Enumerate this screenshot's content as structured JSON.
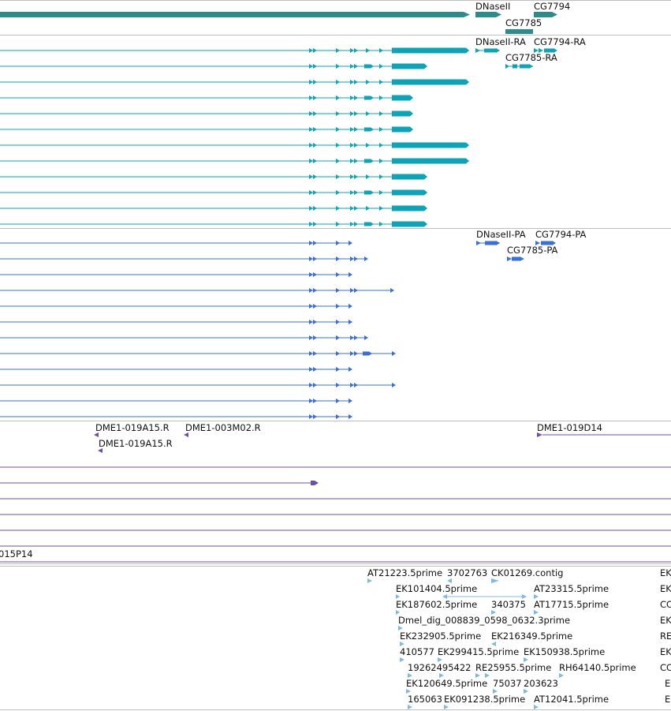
{
  "colors": {
    "gene": "#2e8b8b",
    "transcript": "#0fa3b8",
    "protein": "#3a6fd6",
    "clone": "#6f4ea6",
    "est": "#7fb9e0",
    "separator": "#bfbfbf"
  },
  "tracks": [
    {
      "id": "genes",
      "labels": [
        {
          "text": "DNaseII",
          "glyph": "arrow-right"
        },
        {
          "text": "CG7794",
          "glyph": "arrow-right"
        },
        {
          "text": "CG7785",
          "glyph": "bar"
        }
      ]
    },
    {
      "id": "transcripts",
      "row_count": 12,
      "labels": [
        {
          "text": "DNaseII-RA",
          "glyph": "arrow-right"
        },
        {
          "text": "CG7794-RA",
          "glyph": "arrow-right"
        },
        {
          "text": "CG7785-RA",
          "glyph": "arrow-right"
        }
      ]
    },
    {
      "id": "proteins",
      "row_count": 12,
      "labels": [
        {
          "text": "DNaseII-PA",
          "glyph": "arrow-right"
        },
        {
          "text": "CG7794-PA",
          "glyph": "arrow-right"
        },
        {
          "text": "CG7785-PA",
          "glyph": "arrow-right"
        }
      ]
    },
    {
      "id": "clones",
      "labels": [
        {
          "text": "DME1-019A15.R",
          "glyph": "arrow-left"
        },
        {
          "text": "DME1-003M02.R",
          "glyph": "arrow-left"
        },
        {
          "text": "DME1-019A15.R",
          "glyph": "arrow-left"
        },
        {
          "text": "DME1-019D14",
          "glyph": "line-right"
        },
        {
          "text": "015P14",
          "glyph": "line"
        }
      ]
    },
    {
      "id": "ests",
      "labels": [
        "AT21223.5prime",
        "3702763",
        "CK01269.contig",
        "EK",
        "EK101404.5prime",
        "AT23315.5prime",
        "EK",
        "EK187602.5prime",
        "340375",
        "AT17715.5prime",
        "CC",
        "Dmel_dig_008839_0598_0632.3prime",
        "EK",
        "EK232905.5prime",
        "EK216349.5prime",
        "RE",
        "410577",
        "EK299415.5prime",
        "EK150938.5prime",
        "EK",
        "19262495422",
        "RE25955.5prime",
        "RH64140.5prime",
        "CC",
        "EK120649.5prime",
        "75037",
        "203623",
        "E",
        "165063",
        "EK091238.5prime",
        "AT12041.5prime",
        "E"
      ]
    }
  ]
}
